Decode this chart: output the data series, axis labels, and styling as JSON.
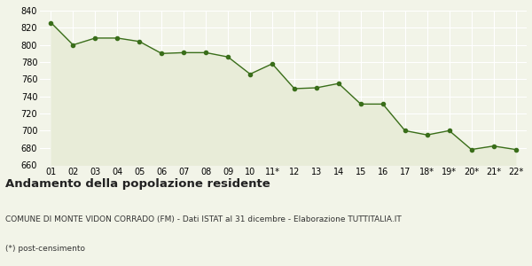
{
  "x_labels": [
    "01",
    "02",
    "03",
    "04",
    "05",
    "06",
    "07",
    "08",
    "09",
    "10",
    "11*",
    "12",
    "13",
    "14",
    "15",
    "16",
    "17",
    "18*",
    "19*",
    "20*",
    "21*",
    "22*"
  ],
  "y_values": [
    826,
    800,
    808,
    808,
    804,
    790,
    791,
    791,
    786,
    766,
    778,
    749,
    750,
    755,
    731,
    731,
    700,
    695,
    700,
    678,
    682,
    678
  ],
  "line_color": "#3a6e1a",
  "fill_color": "#e8ecd8",
  "marker_color": "#3a6e1a",
  "bg_color": "#f2f4e8",
  "grid_color": "#ffffff",
  "ylim": [
    660,
    840
  ],
  "yticks": [
    660,
    680,
    700,
    720,
    740,
    760,
    780,
    800,
    820,
    840
  ],
  "title": "Andamento della popolazione residente",
  "subtitle": "COMUNE DI MONTE VIDON CORRADO (FM) - Dati ISTAT al 31 dicembre - Elaborazione TUTTITALIA.IT",
  "footnote": "(*) post-censimento",
  "title_fontsize": 9.5,
  "subtitle_fontsize": 6.5,
  "footnote_fontsize": 6.5,
  "tick_fontsize": 7.0
}
